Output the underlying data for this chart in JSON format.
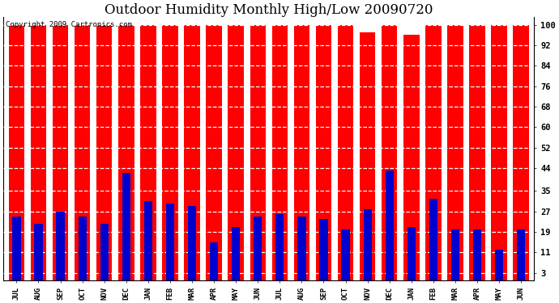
{
  "title": "Outdoor Humidity Monthly High/Low 20090720",
  "copyright_text": "Copyright 2009 Cartronics.com",
  "months": [
    "JUL",
    "AUG",
    "SEP",
    "OCT",
    "NOV",
    "DEC",
    "JAN",
    "FEB",
    "MAR",
    "APR",
    "MAY",
    "JUN",
    "JUL",
    "AUG",
    "SEP",
    "OCT",
    "NOV",
    "DEC",
    "JAN",
    "FEB",
    "MAR",
    "APR",
    "MAY",
    "JUN"
  ],
  "highs": [
    100,
    100,
    100,
    100,
    100,
    100,
    100,
    100,
    100,
    100,
    100,
    100,
    100,
    100,
    100,
    100,
    97,
    100,
    96,
    100,
    100,
    100,
    100,
    100
  ],
  "lows": [
    25,
    22,
    27,
    25,
    22,
    42,
    31,
    30,
    29,
    15,
    21,
    25,
    26,
    25,
    24,
    20,
    28,
    43,
    21,
    32,
    20,
    20,
    12,
    20
  ],
  "high_color": "#ff0000",
  "low_color": "#0000cc",
  "bg_color": "#ffffff",
  "plot_bg_color": "#ffffff",
  "yticks": [
    3,
    11,
    19,
    27,
    35,
    44,
    52,
    60,
    68,
    76,
    84,
    92,
    100
  ],
  "ylim": [
    0,
    103
  ],
  "red_bar_width": 0.72,
  "blue_bar_width": 0.38,
  "title_fontsize": 12,
  "copyright_fontsize": 6.5
}
